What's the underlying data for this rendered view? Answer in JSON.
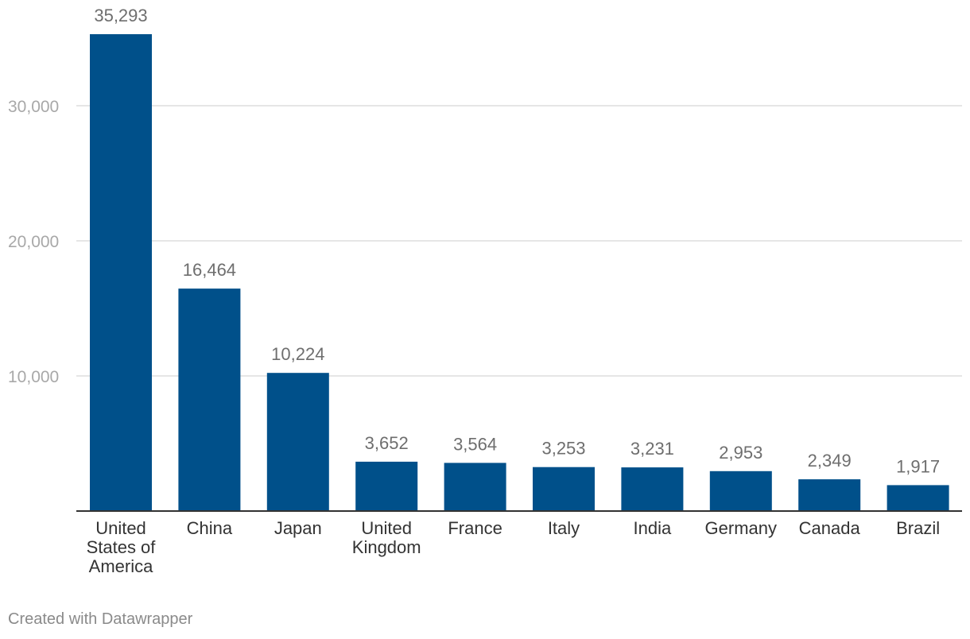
{
  "chart_data": {
    "type": "bar",
    "categories": [
      "United States of America",
      "China",
      "Japan",
      "United Kingdom",
      "France",
      "Italy",
      "India",
      "Germany",
      "Canada",
      "Brazil"
    ],
    "category_lines": [
      [
        "United",
        "States of",
        "America"
      ],
      [
        "China"
      ],
      [
        "Japan"
      ],
      [
        "United",
        "Kingdom"
      ],
      [
        "France"
      ],
      [
        "Italy"
      ],
      [
        "India"
      ],
      [
        "Germany"
      ],
      [
        "Canada"
      ],
      [
        "Brazil"
      ]
    ],
    "values": [
      35293,
      16464,
      10224,
      3652,
      3564,
      3253,
      3231,
      2953,
      2349,
      1917
    ],
    "value_labels": [
      "35,293",
      "16,464",
      "10,224",
      "3,652",
      "3,564",
      "3,253",
      "3,231",
      "2,953",
      "2,349",
      "1,917"
    ],
    "yticks": [
      10000,
      20000,
      30000
    ],
    "ytick_labels": [
      "10,000",
      "20,000",
      "30,000"
    ],
    "ylim": [
      0,
      35293
    ],
    "grid": true,
    "bar_color": "#00508a"
  },
  "footer": {
    "credit": "Created with Datawrapper"
  }
}
